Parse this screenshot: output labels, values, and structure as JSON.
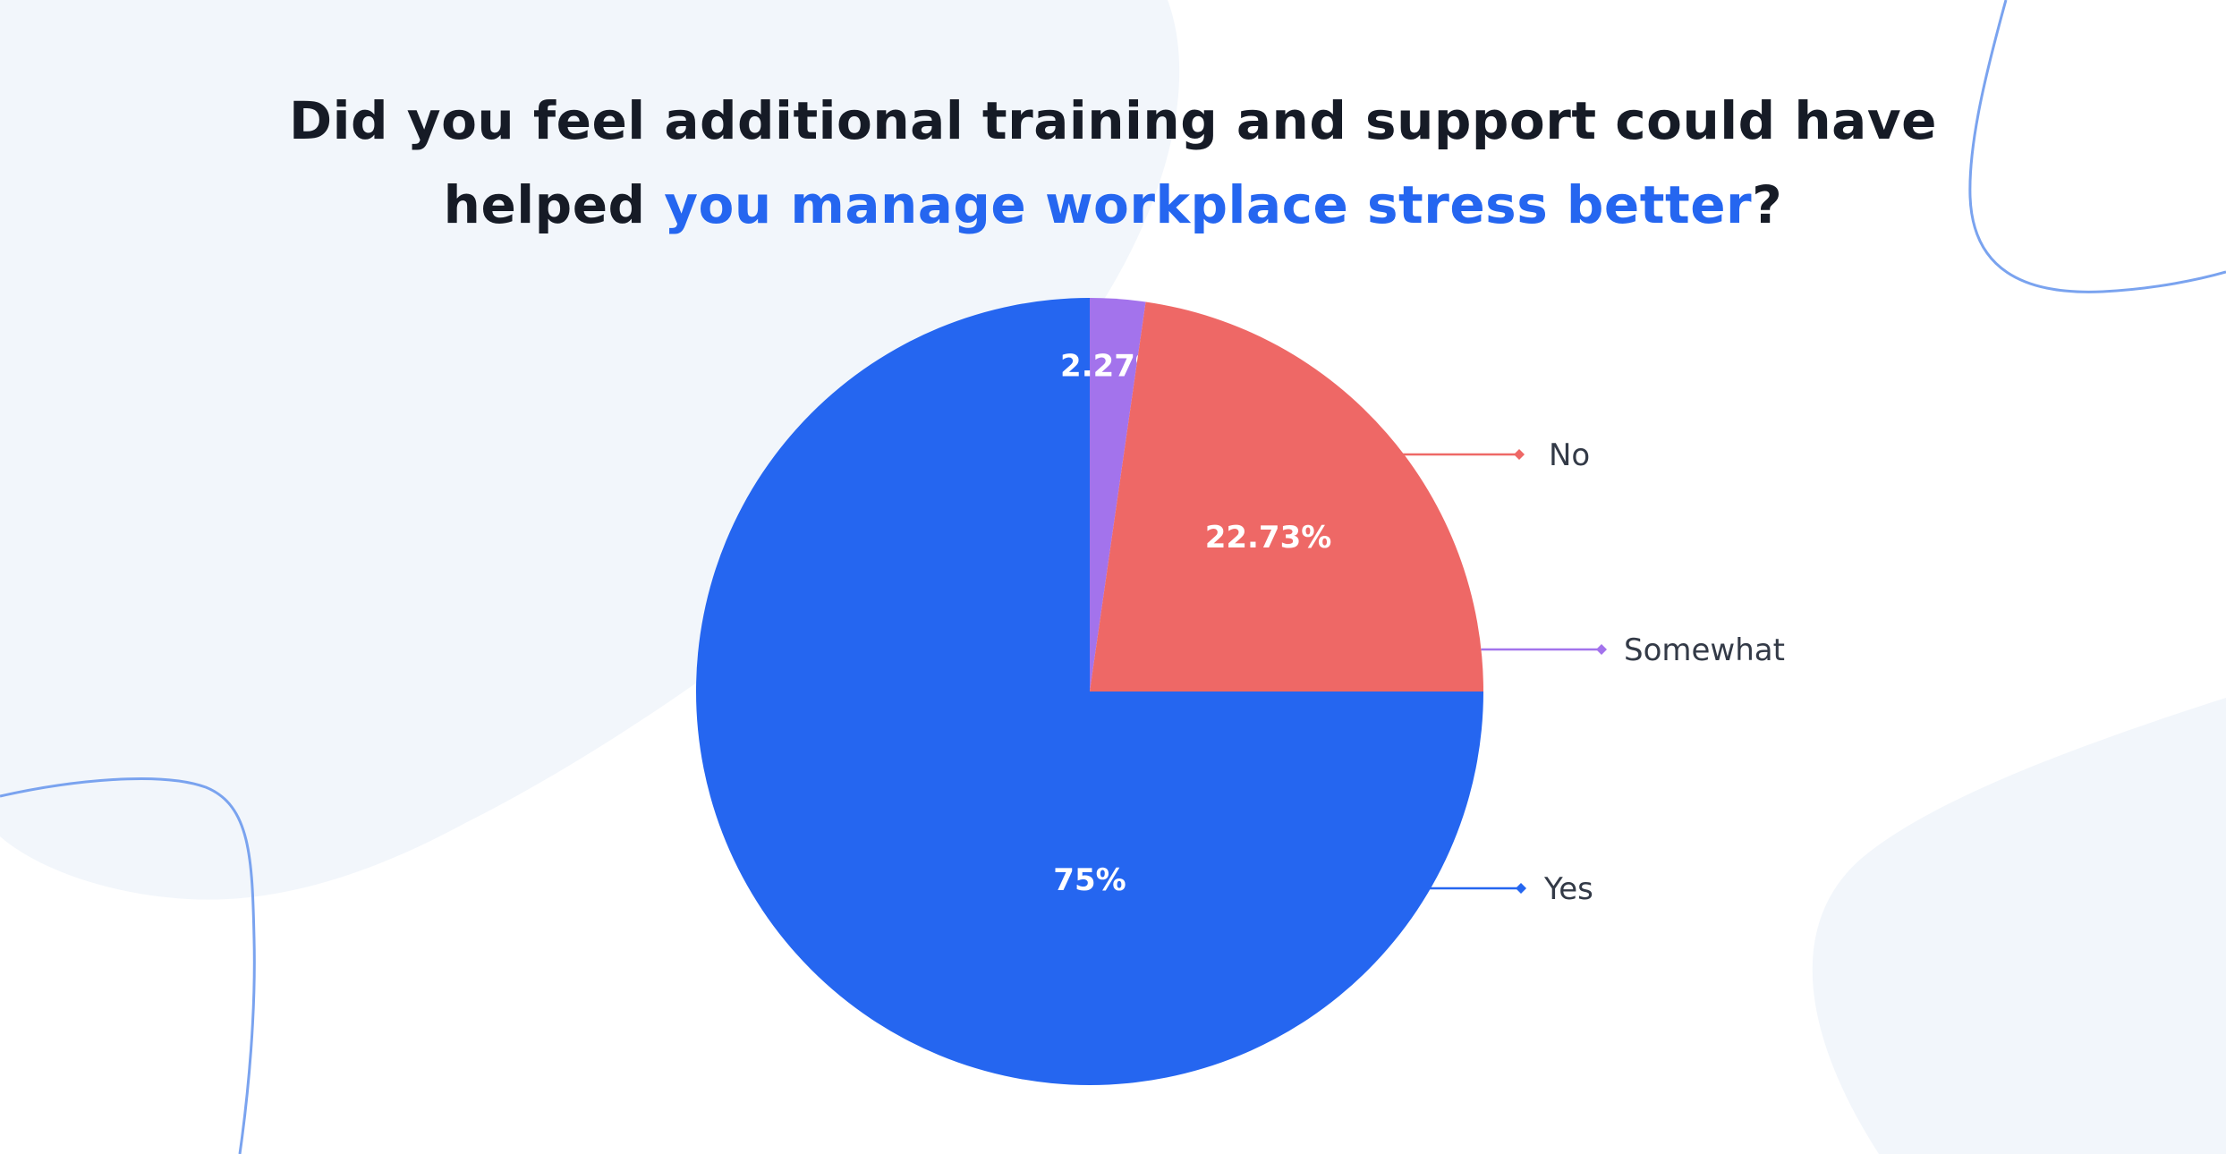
{
  "title": {
    "line1": "Did you feel additional training and support could have",
    "line2_prefix": "helped ",
    "line2_highlight": "you manage workplace stress better",
    "line2_suffix": "?"
  },
  "colors": {
    "title_text": "#161b26",
    "title_highlight": "#2566f0",
    "yes": "#2566f0",
    "no": "#ee6866",
    "somewhat": "#a373ec",
    "label_text": "#333a47",
    "background_shape": "#f2f6fb",
    "decor_line": "#7aa3ef"
  },
  "chart_data": {
    "type": "pie",
    "title": "Did you feel additional training and support could have helped you manage workplace stress better?",
    "slices": [
      {
        "label": "Yes",
        "value": 75,
        "display": "75%",
        "color": "#2566f0"
      },
      {
        "label": "Somewhat",
        "value": 2.27,
        "display": "2.27%",
        "color": "#a373ec"
      },
      {
        "label": "No",
        "value": 22.73,
        "display": "22.73%",
        "color": "#ee6866"
      }
    ],
    "legend": "callout-right"
  }
}
